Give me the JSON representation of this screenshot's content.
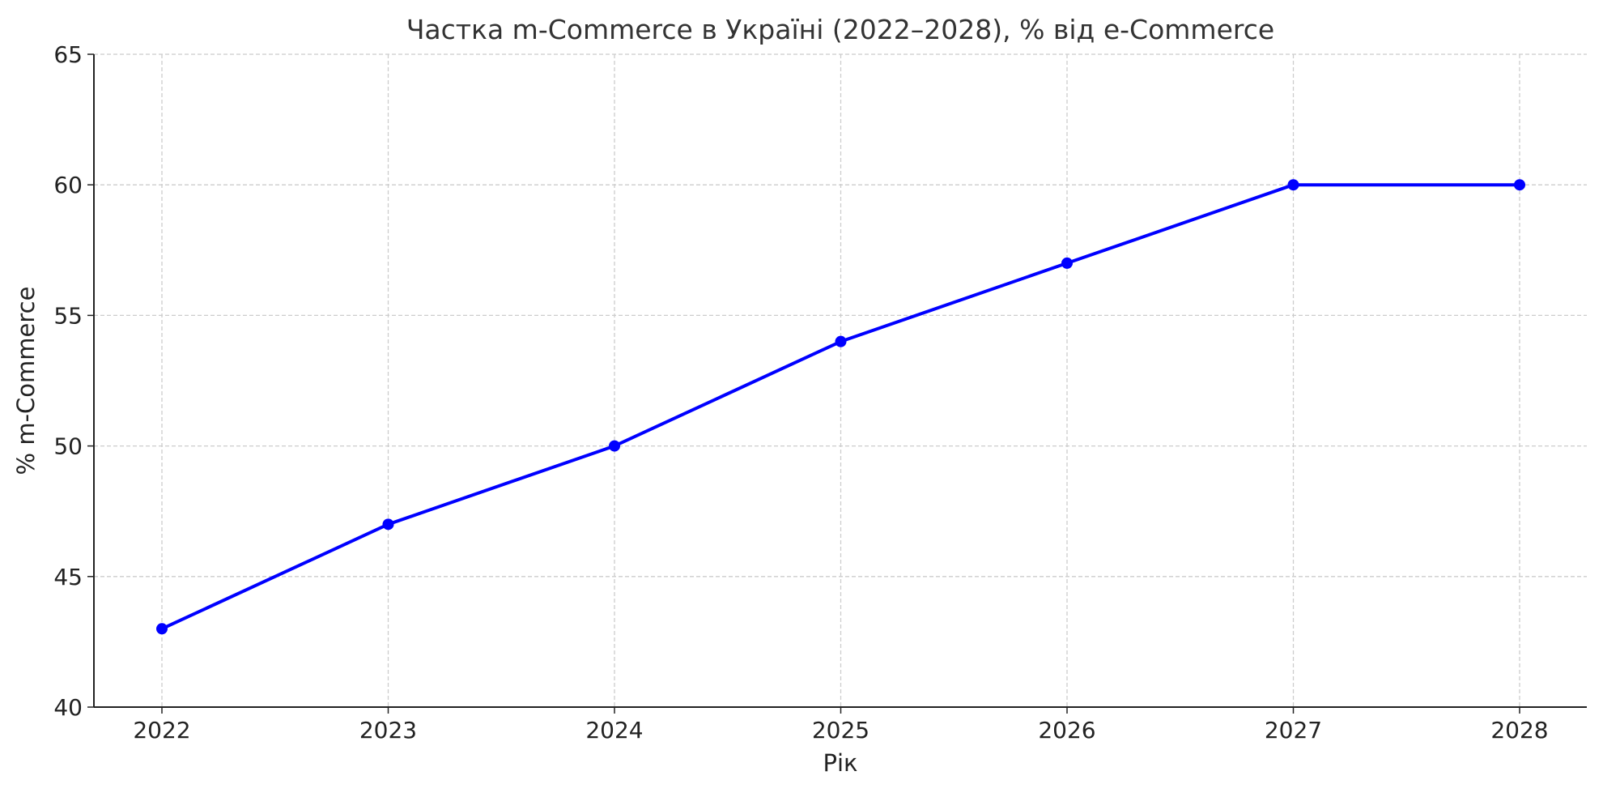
{
  "chart_data": {
    "type": "line",
    "title": "Частка m-Commerce в Україні (2022–2028), % від e-Commerce",
    "xlabel": "Рік",
    "ylabel": "% m-Commerce",
    "categories": [
      "2022",
      "2023",
      "2024",
      "2025",
      "2026",
      "2027",
      "2028"
    ],
    "values": [
      43,
      47,
      50,
      54,
      57,
      60,
      60
    ],
    "ylim": [
      40,
      65
    ],
    "yticks": [
      "40",
      "45",
      "50",
      "55",
      "60",
      "65"
    ],
    "grid": true,
    "line_color": "#0000ff",
    "marker": "circle"
  }
}
